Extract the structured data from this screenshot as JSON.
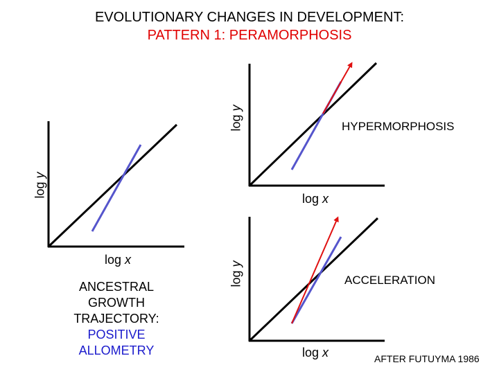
{
  "title": {
    "line1": "EVOLUTIONARY CHANGES IN DEVELOPMENT:",
    "line2": "PATTERN 1: PERAMORPHOSIS"
  },
  "panels": {
    "ancestral": {
      "ylabel_prefix": "log ",
      "ylabel_var": "y",
      "xlabel_prefix": "log ",
      "xlabel_var": "x",
      "caption": {
        "line1": "ANCESTRAL",
        "line2": "GROWTH",
        "line3": "TRAJECTORY:",
        "line4": "POSITIVE",
        "line5": "ALLOMETRY"
      }
    },
    "hypermorphosis": {
      "name": "HYPERMORPHOSIS",
      "ylabel_prefix": "log ",
      "ylabel_var": "y",
      "xlabel_prefix": "log ",
      "xlabel_var": "x"
    },
    "acceleration": {
      "name": "ACCELERATION",
      "ylabel_prefix": "log ",
      "ylabel_var": "y",
      "xlabel_prefix": "log ",
      "xlabel_var": "x"
    }
  },
  "credit": "AFTER FUTUYMA 1986",
  "colors": {
    "title_line1": "#000000",
    "title_line2": "#e00000",
    "ancestral_line": "#5555cc",
    "descendant_arrow": "#e01010",
    "caption_dark": "#000000",
    "caption_blue": "#1a1acc",
    "reference_line": "#000000"
  }
}
